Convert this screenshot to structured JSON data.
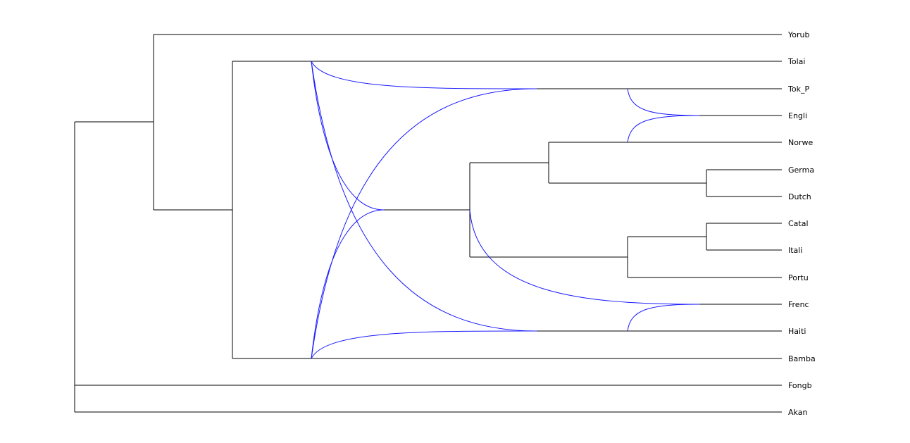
{
  "diagram": {
    "type": "phylogenetic-network",
    "tree_color": "#000000",
    "reticulation_color": "#1a1aff",
    "leaves": [
      "Yorub",
      "Tolai",
      "Tok_P",
      "Engli",
      "Norwe",
      "Germa",
      "Dutch",
      "Catal",
      "Itali",
      "Portu",
      "Frenc",
      "Haiti",
      "Bamba",
      "Fongb",
      "Akan"
    ]
  }
}
